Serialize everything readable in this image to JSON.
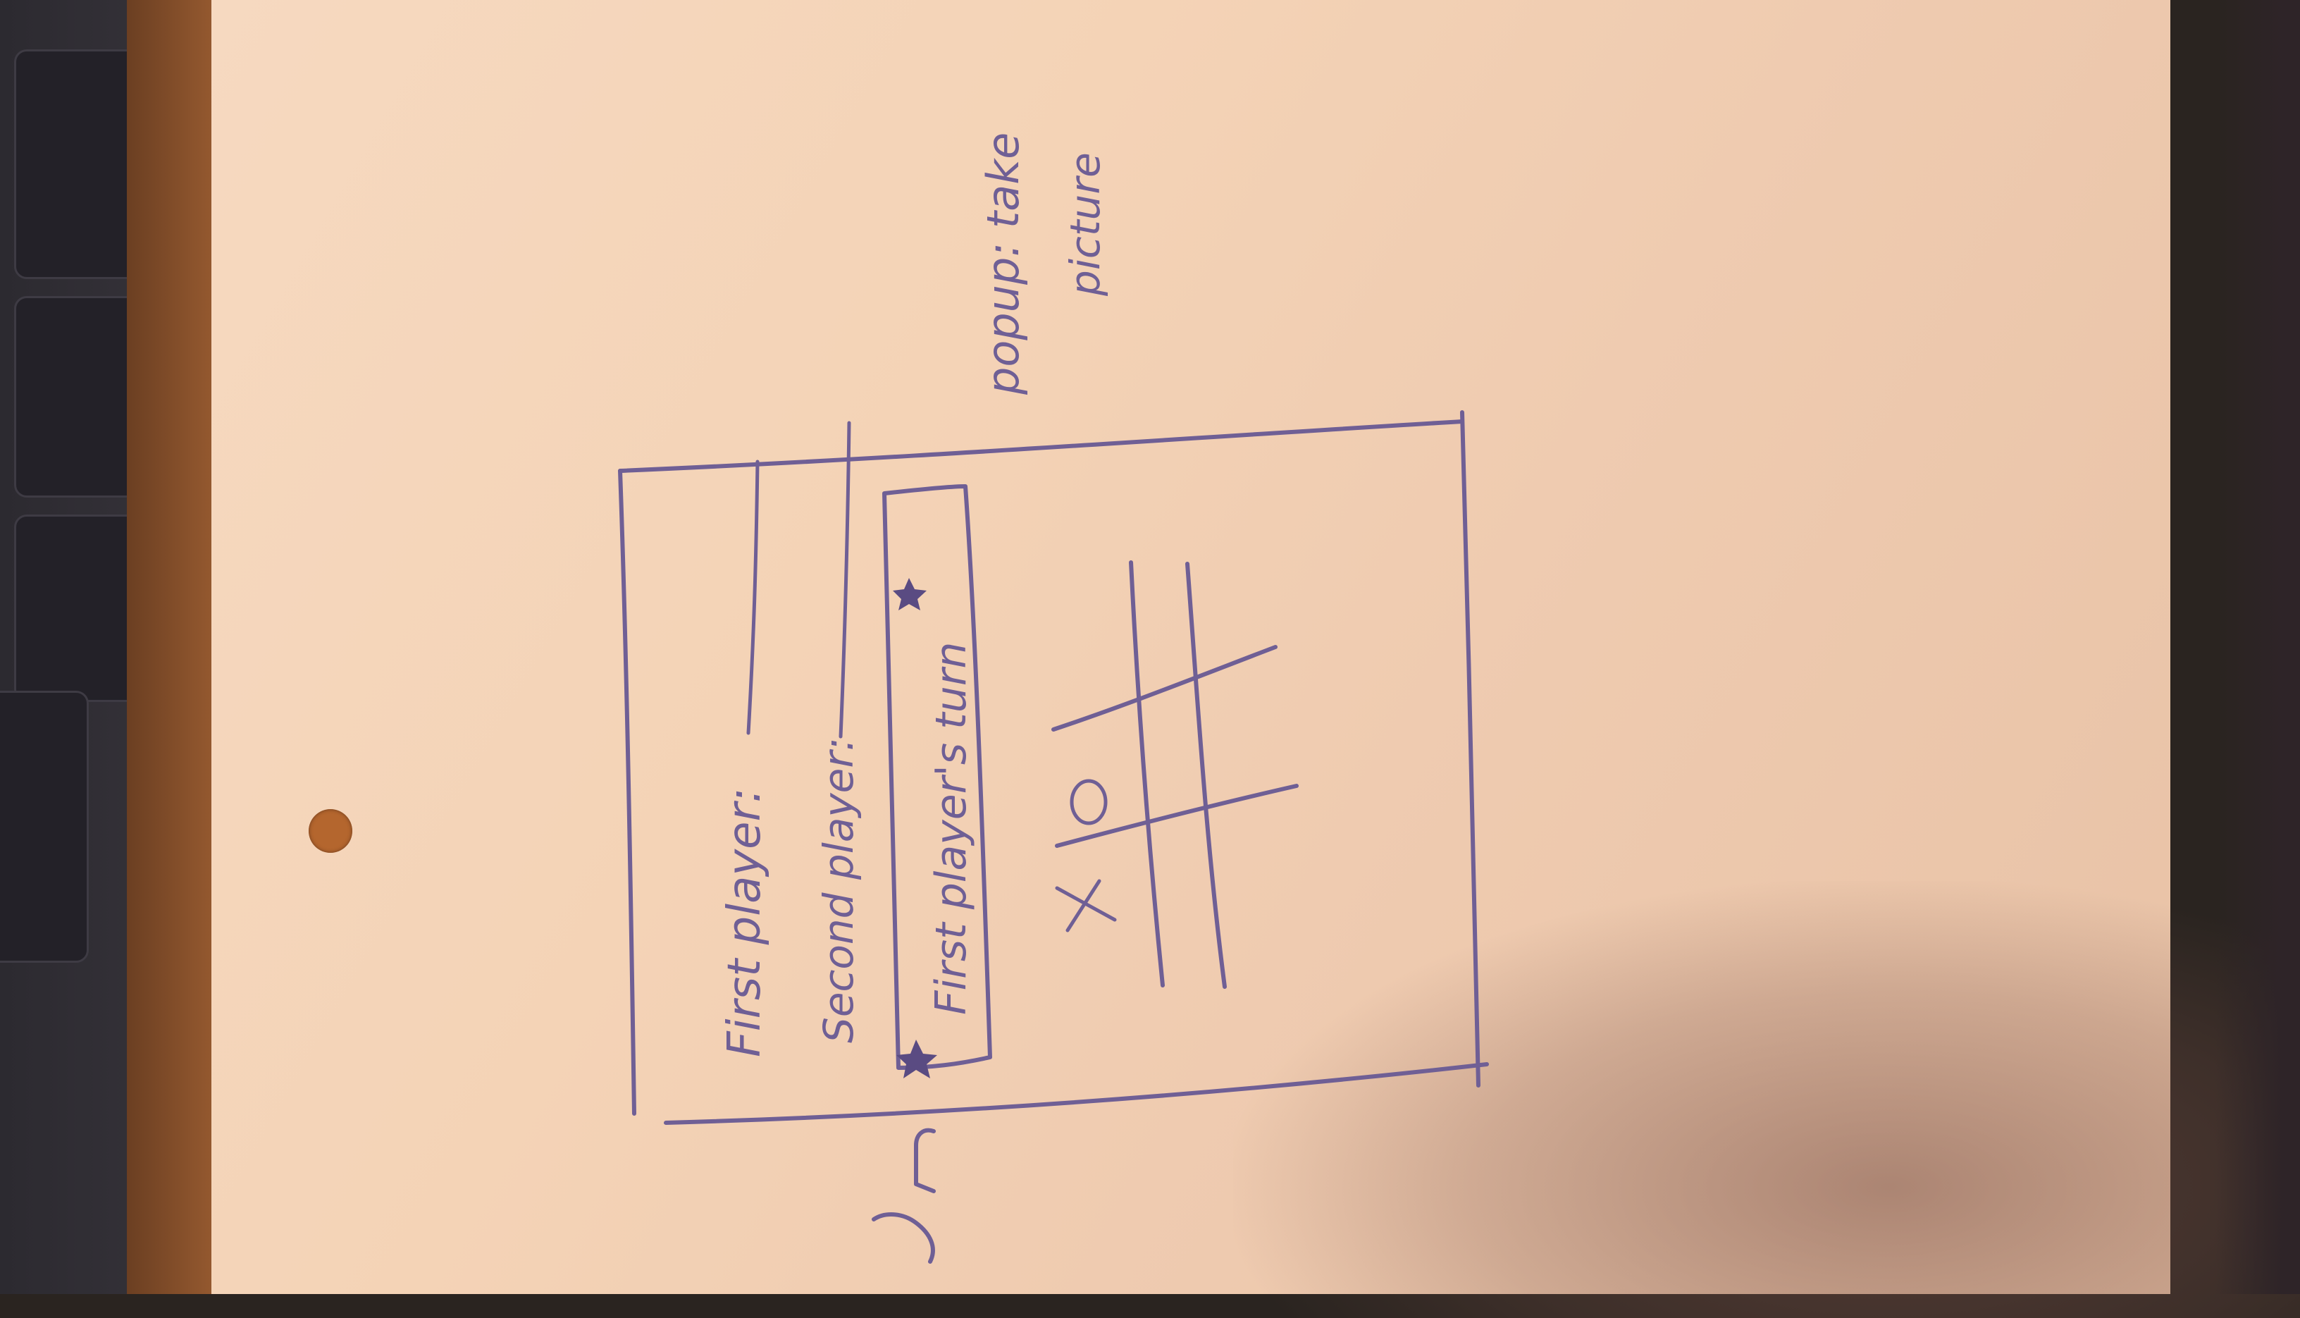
{
  "sketch": {
    "first_player_label": "First player:",
    "second_player_label": "Second player:",
    "turn_banner_text": "First player's turn",
    "side_note_line1": "popup: take",
    "side_note_line2": "picture",
    "board_marks": [
      "O",
      "X"
    ]
  },
  "colors": {
    "ink": "#6f5f95",
    "paper": "#f4d3b6",
    "desk": "#b06a38",
    "keyboard": "#2c2a30"
  }
}
